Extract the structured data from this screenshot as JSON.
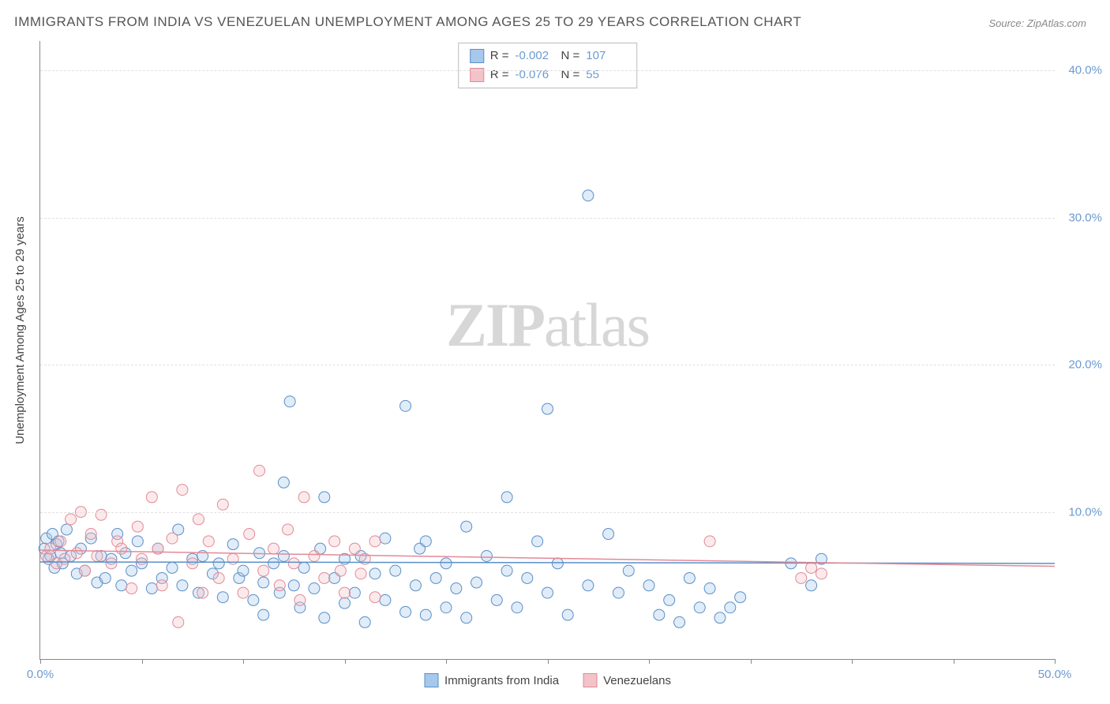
{
  "title": "IMMIGRANTS FROM INDIA VS VENEZUELAN UNEMPLOYMENT AMONG AGES 25 TO 29 YEARS CORRELATION CHART",
  "source_label": "Source: ZipAtlas.com",
  "ylabel": "Unemployment Among Ages 25 to 29 years",
  "watermark_a": "ZIP",
  "watermark_b": "atlas",
  "chart": {
    "type": "scatter",
    "xlim": [
      0,
      50
    ],
    "ylim": [
      0,
      42
    ],
    "x_ticks": [
      0,
      5,
      10,
      15,
      20,
      25,
      30,
      35,
      40,
      45,
      50
    ],
    "x_tick_labels": {
      "0": "0.0%",
      "50": "50.0%"
    },
    "y_ticks": [
      10,
      20,
      30,
      40
    ],
    "y_tick_labels": {
      "10": "10.0%",
      "20": "20.0%",
      "30": "30.0%",
      "40": "40.0%"
    },
    "background_color": "#ffffff",
    "grid_color": "#e0e0e0",
    "axis_color": "#888888",
    "marker_radius": 7,
    "marker_opacity": 0.35,
    "line_width": 1.5,
    "series": [
      {
        "id": "india",
        "label": "Immigrants from India",
        "fill_color": "#a6c8ec",
        "stroke_color": "#5b8fc7",
        "R": "-0.002",
        "N": "107",
        "regression": {
          "x1": 0,
          "y1": 6.6,
          "x2": 50,
          "y2": 6.5
        },
        "points": [
          [
            0.2,
            7.5
          ],
          [
            0.3,
            8.2
          ],
          [
            0.4,
            6.8
          ],
          [
            0.5,
            7.0
          ],
          [
            0.6,
            8.5
          ],
          [
            0.7,
            6.2
          ],
          [
            0.8,
            7.8
          ],
          [
            0.9,
            8.0
          ],
          [
            1.0,
            7.2
          ],
          [
            1.1,
            6.5
          ],
          [
            1.3,
            8.8
          ],
          [
            1.5,
            7.0
          ],
          [
            1.8,
            5.8
          ],
          [
            2.0,
            7.5
          ],
          [
            2.2,
            6.0
          ],
          [
            2.5,
            8.2
          ],
          [
            2.8,
            5.2
          ],
          [
            3.0,
            7.0
          ],
          [
            3.2,
            5.5
          ],
          [
            3.5,
            6.8
          ],
          [
            3.8,
            8.5
          ],
          [
            4.0,
            5.0
          ],
          [
            4.2,
            7.2
          ],
          [
            4.5,
            6.0
          ],
          [
            4.8,
            8.0
          ],
          [
            5.0,
            6.5
          ],
          [
            5.5,
            4.8
          ],
          [
            5.8,
            7.5
          ],
          [
            6.0,
            5.5
          ],
          [
            6.5,
            6.2
          ],
          [
            6.8,
            8.8
          ],
          [
            7.0,
            5.0
          ],
          [
            7.5,
            6.8
          ],
          [
            7.8,
            4.5
          ],
          [
            8.0,
            7.0
          ],
          [
            8.5,
            5.8
          ],
          [
            8.8,
            6.5
          ],
          [
            9.0,
            4.2
          ],
          [
            9.5,
            7.8
          ],
          [
            9.8,
            5.5
          ],
          [
            10.0,
            6.0
          ],
          [
            10.5,
            4.0
          ],
          [
            10.8,
            7.2
          ],
          [
            11.0,
            5.2
          ],
          [
            11.0,
            3.0
          ],
          [
            11.5,
            6.5
          ],
          [
            11.8,
            4.5
          ],
          [
            12.0,
            12.0
          ],
          [
            12.0,
            7.0
          ],
          [
            12.3,
            17.5
          ],
          [
            12.5,
            5.0
          ],
          [
            12.8,
            3.5
          ],
          [
            13.0,
            6.2
          ],
          [
            13.5,
            4.8
          ],
          [
            13.8,
            7.5
          ],
          [
            14.0,
            2.8
          ],
          [
            14.0,
            11.0
          ],
          [
            14.5,
            5.5
          ],
          [
            15.0,
            6.8
          ],
          [
            15.0,
            3.8
          ],
          [
            15.5,
            4.5
          ],
          [
            15.8,
            7.0
          ],
          [
            16.0,
            2.5
          ],
          [
            16.5,
            5.8
          ],
          [
            17.0,
            8.2
          ],
          [
            17.0,
            4.0
          ],
          [
            17.5,
            6.0
          ],
          [
            18.0,
            3.2
          ],
          [
            18.0,
            17.2
          ],
          [
            18.5,
            5.0
          ],
          [
            18.7,
            7.5
          ],
          [
            19.0,
            3.0
          ],
          [
            19.0,
            8.0
          ],
          [
            19.5,
            5.5
          ],
          [
            20.0,
            6.5
          ],
          [
            20.0,
            3.5
          ],
          [
            20.5,
            4.8
          ],
          [
            21.0,
            2.8
          ],
          [
            21.0,
            9.0
          ],
          [
            21.5,
            5.2
          ],
          [
            22.0,
            7.0
          ],
          [
            22.5,
            4.0
          ],
          [
            23.0,
            11.0
          ],
          [
            23.0,
            6.0
          ],
          [
            23.5,
            3.5
          ],
          [
            24.0,
            5.5
          ],
          [
            24.5,
            8.0
          ],
          [
            25.0,
            4.5
          ],
          [
            25.0,
            17.0
          ],
          [
            25.5,
            6.5
          ],
          [
            26.0,
            3.0
          ],
          [
            27.0,
            31.5
          ],
          [
            27.0,
            5.0
          ],
          [
            28.0,
            8.5
          ],
          [
            28.5,
            4.5
          ],
          [
            29.0,
            6.0
          ],
          [
            30.0,
            5.0
          ],
          [
            30.5,
            3.0
          ],
          [
            31.0,
            4.0
          ],
          [
            31.5,
            2.5
          ],
          [
            32.0,
            5.5
          ],
          [
            32.5,
            3.5
          ],
          [
            33.0,
            4.8
          ],
          [
            33.5,
            2.8
          ],
          [
            34.0,
            3.5
          ],
          [
            34.5,
            4.2
          ],
          [
            37.0,
            6.5
          ],
          [
            38.0,
            5.0
          ],
          [
            38.5,
            6.8
          ]
        ]
      },
      {
        "id": "venezuela",
        "label": "Venezuelans",
        "fill_color": "#f4c2c9",
        "stroke_color": "#e28a96",
        "R": "-0.076",
        "N": "55",
        "regression": {
          "x1": 0,
          "y1": 7.4,
          "x2": 50,
          "y2": 6.3
        },
        "points": [
          [
            0.3,
            7.0
          ],
          [
            0.5,
            7.5
          ],
          [
            0.8,
            6.5
          ],
          [
            1.0,
            8.0
          ],
          [
            1.2,
            6.8
          ],
          [
            1.5,
            9.5
          ],
          [
            1.8,
            7.2
          ],
          [
            2.0,
            10.0
          ],
          [
            2.2,
            6.0
          ],
          [
            2.5,
            8.5
          ],
          [
            2.8,
            7.0
          ],
          [
            3.0,
            9.8
          ],
          [
            3.5,
            6.5
          ],
          [
            3.8,
            8.0
          ],
          [
            4.0,
            7.5
          ],
          [
            4.5,
            4.8
          ],
          [
            4.8,
            9.0
          ],
          [
            5.0,
            6.8
          ],
          [
            5.5,
            11.0
          ],
          [
            5.8,
            7.5
          ],
          [
            6.0,
            5.0
          ],
          [
            6.5,
            8.2
          ],
          [
            6.8,
            2.5
          ],
          [
            7.0,
            11.5
          ],
          [
            7.5,
            6.5
          ],
          [
            7.8,
            9.5
          ],
          [
            8.0,
            4.5
          ],
          [
            8.3,
            8.0
          ],
          [
            8.8,
            5.5
          ],
          [
            9.0,
            10.5
          ],
          [
            9.5,
            6.8
          ],
          [
            10.0,
            4.5
          ],
          [
            10.3,
            8.5
          ],
          [
            10.8,
            12.8
          ],
          [
            11.0,
            6.0
          ],
          [
            11.5,
            7.5
          ],
          [
            11.8,
            5.0
          ],
          [
            12.2,
            8.8
          ],
          [
            12.5,
            6.5
          ],
          [
            12.8,
            4.0
          ],
          [
            13.0,
            11.0
          ],
          [
            13.5,
            7.0
          ],
          [
            14.0,
            5.5
          ],
          [
            14.5,
            8.0
          ],
          [
            14.8,
            6.0
          ],
          [
            15.0,
            4.5
          ],
          [
            15.5,
            7.5
          ],
          [
            15.8,
            5.8
          ],
          [
            16.0,
            6.8
          ],
          [
            16.5,
            4.2
          ],
          [
            16.5,
            8.0
          ],
          [
            33.0,
            8.0
          ],
          [
            37.5,
            5.5
          ],
          [
            38.0,
            6.2
          ],
          [
            38.5,
            5.8
          ]
        ]
      }
    ]
  },
  "legend_top": {
    "r_label": "R =",
    "n_label": "N ="
  }
}
